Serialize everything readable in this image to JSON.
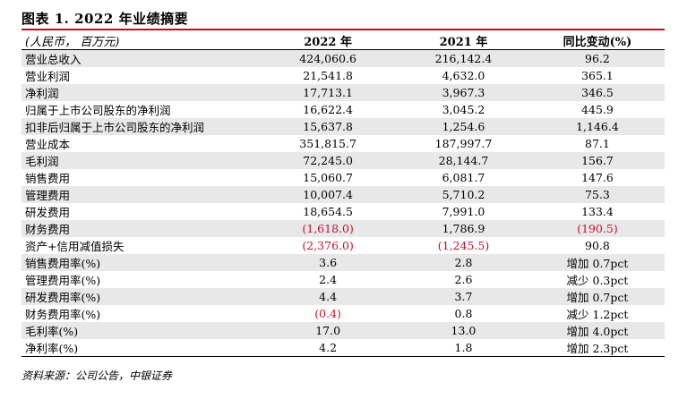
{
  "title": "图表 1. 2022 年业绩摘要",
  "columns": {
    "unit": "(人民币， 百万元)",
    "y2022": "2022 年",
    "y2021": "2021 年",
    "change": "同比变动(%)"
  },
  "rows": [
    {
      "label": "营业总收入",
      "v2022": "424,060.6",
      "v2021": "216,142.4",
      "change": "96.2",
      "neg2022": false,
      "neg2021": false,
      "negChange": false
    },
    {
      "label": "营业利润",
      "v2022": "21,541.8",
      "v2021": "4,632.0",
      "change": "365.1",
      "neg2022": false,
      "neg2021": false,
      "negChange": false
    },
    {
      "label": "净利润",
      "v2022": "17,713.1",
      "v2021": "3,967.3",
      "change": "346.5",
      "neg2022": false,
      "neg2021": false,
      "negChange": false
    },
    {
      "label": "归属于上市公司股东的净利润",
      "v2022": "16,622.4",
      "v2021": "3,045.2",
      "change": "445.9",
      "neg2022": false,
      "neg2021": false,
      "negChange": false
    },
    {
      "label": "扣非后归属于上市公司股东的净利润",
      "v2022": "15,637.8",
      "v2021": "1,254.6",
      "change": "1,146.4",
      "neg2022": false,
      "neg2021": false,
      "negChange": false
    },
    {
      "label": "营业成本",
      "v2022": "351,815.7",
      "v2021": "187,997.7",
      "change": "87.1",
      "neg2022": false,
      "neg2021": false,
      "negChange": false
    },
    {
      "label": "毛利润",
      "v2022": "72,245.0",
      "v2021": "28,144.7",
      "change": "156.7",
      "neg2022": false,
      "neg2021": false,
      "negChange": false
    },
    {
      "label": "销售费用",
      "v2022": "15,060.7",
      "v2021": "6,081.7",
      "change": "147.6",
      "neg2022": false,
      "neg2021": false,
      "negChange": false
    },
    {
      "label": "管理费用",
      "v2022": "10,007.4",
      "v2021": "5,710.2",
      "change": "75.3",
      "neg2022": false,
      "neg2021": false,
      "negChange": false
    },
    {
      "label": "研发费用",
      "v2022": "18,654.5",
      "v2021": "7,991.0",
      "change": "133.4",
      "neg2022": false,
      "neg2021": false,
      "negChange": false
    },
    {
      "label": "财务费用",
      "v2022": "(1,618.0)",
      "v2021": "1,786.9",
      "change": "(190.5)",
      "neg2022": true,
      "neg2021": false,
      "negChange": true
    },
    {
      "label": "资产+信用减值损失",
      "v2022": "(2,376.0)",
      "v2021": "(1,245.5)",
      "change": "90.8",
      "neg2022": true,
      "neg2021": true,
      "negChange": false
    },
    {
      "label": "销售费用率(%)",
      "v2022": "3.6",
      "v2021": "2.8",
      "change": "增加 0.7pct",
      "neg2022": false,
      "neg2021": false,
      "negChange": false
    },
    {
      "label": "管理费用率(%)",
      "v2022": "2.4",
      "v2021": "2.6",
      "change": "减少 0.3pct",
      "neg2022": false,
      "neg2021": false,
      "negChange": false
    },
    {
      "label": "研发费用率(%)",
      "v2022": "4.4",
      "v2021": "3.7",
      "change": "增加 0.7pct",
      "neg2022": false,
      "neg2021": false,
      "negChange": false
    },
    {
      "label": "财务费用率(%)",
      "v2022": "(0.4)",
      "v2021": "0.8",
      "change": "减少 1.2pct",
      "neg2022": true,
      "neg2021": false,
      "negChange": false
    },
    {
      "label": "毛利率(%)",
      "v2022": "17.0",
      "v2021": "13.0",
      "change": "增加 4.0pct",
      "neg2022": false,
      "neg2021": false,
      "negChange": false
    },
    {
      "label": "净利率(%)",
      "v2022": "4.2",
      "v2021": "1.8",
      "change": "增加 2.3pct",
      "neg2022": false,
      "neg2021": false,
      "negChange": false
    }
  ],
  "source": "资料来源：公司公告，中银证券",
  "colors": {
    "accent_rule": "#b5121b",
    "negative": "#c8102e",
    "stripe": "#e8e8e8"
  }
}
